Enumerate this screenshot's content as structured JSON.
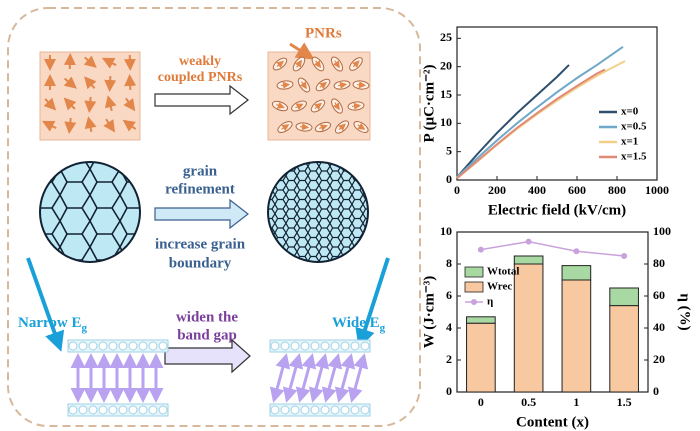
{
  "diagram": {
    "pnrs": "PNRs",
    "weakly_coupled": [
      "weakly",
      "coupled PNRs"
    ],
    "grain_refinement": [
      "grain",
      "refinement"
    ],
    "grain_boundary": [
      "increase grain",
      "boundary"
    ],
    "band_gap": [
      "widen the",
      "band gap"
    ],
    "narrow": {
      "text": "Narrow E",
      "sub": "g"
    },
    "wide": {
      "text": "Wide E",
      "sub": "g"
    }
  },
  "chart_data": [
    {
      "type": "line",
      "xlabel": "Electric field (kV/cm)",
      "ylabel": "P (μC·cm⁻²)",
      "xlim": [
        0,
        1000
      ],
      "xticks": [
        0,
        200,
        400,
        600,
        800,
        1000
      ],
      "ylim": [
        0,
        27
      ],
      "yticks": [
        0,
        5,
        10,
        15,
        20,
        25
      ],
      "legend": "lower-right",
      "series": [
        {
          "name": "x=0",
          "color": "#2f4f6f",
          "x": [
            0,
            100,
            200,
            300,
            400,
            500,
            560
          ],
          "values": [
            0.5,
            4.5,
            8.3,
            11.8,
            15,
            18.2,
            20.3
          ]
        },
        {
          "name": "x=0.5",
          "color": "#6fa8c8",
          "x": [
            0,
            100,
            200,
            300,
            400,
            500,
            600,
            700,
            830
          ],
          "values": [
            0.5,
            3.8,
            7,
            10,
            12.8,
            15.5,
            18,
            20.3,
            23.5
          ]
        },
        {
          "name": "x=1",
          "color": "#f3d08a",
          "x": [
            0,
            100,
            200,
            300,
            400,
            500,
            600,
            700,
            840
          ],
          "values": [
            0.3,
            3.2,
            6.2,
            9,
            11.6,
            14,
            16.3,
            18.4,
            21
          ]
        },
        {
          "name": "x=1.5",
          "color": "#e08a78",
          "x": [
            0,
            100,
            200,
            300,
            400,
            500,
            600,
            700,
            740
          ],
          "values": [
            0.3,
            3.3,
            6.3,
            9.2,
            11.8,
            14.3,
            16.6,
            18.8,
            19.5
          ]
        }
      ]
    },
    {
      "type": "bar",
      "xlabel": "Content (x)",
      "ylabel": "W (J·cm⁻³)",
      "y2label": "η (%)",
      "categories": [
        "0",
        "0.5",
        "1",
        "1.5"
      ],
      "ylim": [
        0,
        10
      ],
      "yticks": [
        0,
        2,
        4,
        6,
        8,
        10
      ],
      "y2lim": [
        0,
        100
      ],
      "y2ticks": [
        0,
        20,
        40,
        60,
        80,
        100
      ],
      "legend": "upper-left",
      "series": [
        {
          "name": "Wrec",
          "color": "#f8c9a0",
          "values": [
            4.3,
            8.0,
            7.0,
            5.4
          ]
        },
        {
          "name": "Wtotal",
          "color": "#a9d9a2",
          "values": [
            0.4,
            0.5,
            0.9,
            1.1
          ]
        },
        {
          "name": "η",
          "color": "#c9a2dc",
          "axis": "y2",
          "values": [
            89,
            94,
            88,
            85
          ]
        }
      ]
    }
  ]
}
